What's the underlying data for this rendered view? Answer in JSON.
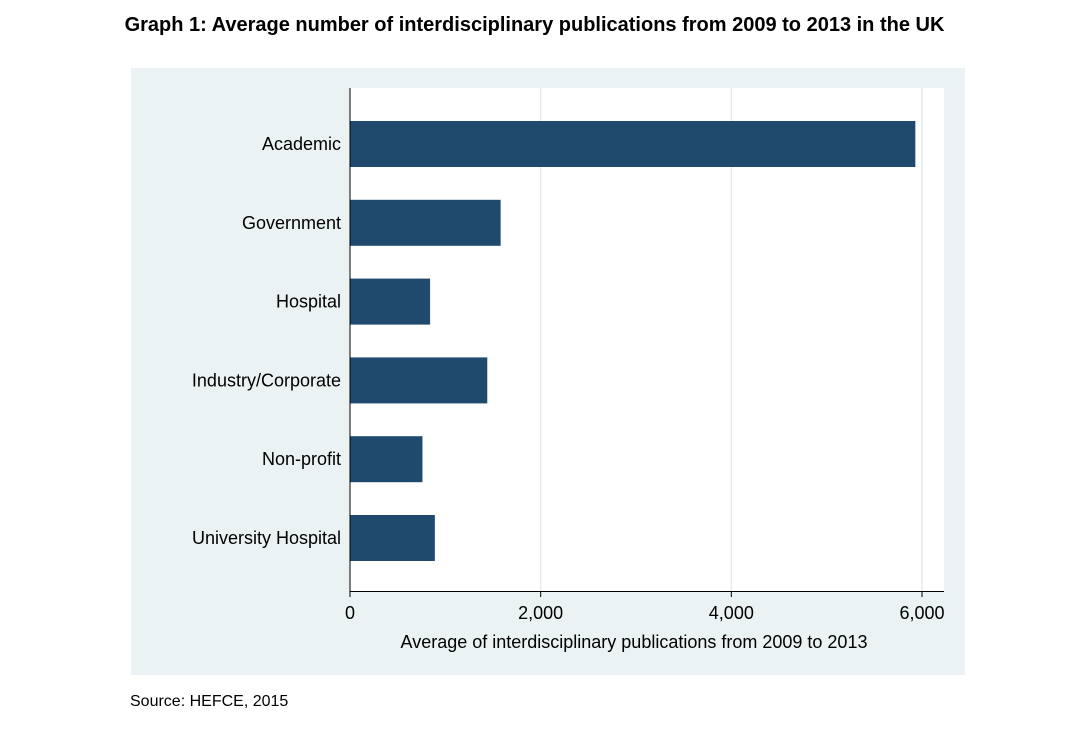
{
  "title": "Graph 1: Average number of interdisciplinary publications from 2009 to 2013 in the UK",
  "source": "Source: HEFCE, 2015",
  "colors": {
    "bar": "#1f4a6e",
    "plot_background": "#eaf2f3",
    "inner_background": "#ffffff",
    "grid": "#e4ecee"
  },
  "chart_data": {
    "type": "bar",
    "orientation": "horizontal",
    "categories": [
      "Academic",
      "Government",
      "Hospital",
      "Industry/Corporate",
      "Non-profit",
      "University Hospital"
    ],
    "values": [
      5930,
      1580,
      840,
      1440,
      760,
      890
    ],
    "xlabel": "Average of interdisciplinary publications from 2009 to 2013",
    "ylabel": "",
    "xlim": [
      0,
      6200
    ],
    "xticks": [
      0,
      2000,
      4000,
      6000
    ],
    "xtick_labels": [
      "0",
      "2,000",
      "4,000",
      "6,000"
    ],
    "grid": true
  }
}
